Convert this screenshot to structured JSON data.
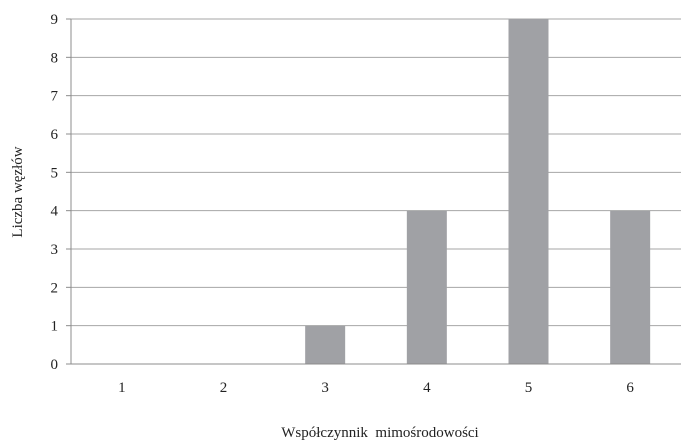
{
  "chart_data": {
    "type": "bar",
    "categories": [
      "1",
      "2",
      "3",
      "4",
      "5",
      "6"
    ],
    "values": [
      0,
      0,
      1,
      4,
      9,
      4
    ],
    "xlabel": "Współczynnik  mimośrodowości",
    "ylabel": "Liczba węzłów",
    "ylim": [
      0,
      9
    ],
    "yticks": [
      "0",
      "1",
      "2",
      "3",
      "4",
      "5",
      "6",
      "7",
      "8",
      "9"
    ],
    "grid": true,
    "legend": "none",
    "colors": {
      "bar": "#a0a1a5",
      "grid": "#a6a6a6",
      "axis": "#8c8c8c"
    }
  }
}
